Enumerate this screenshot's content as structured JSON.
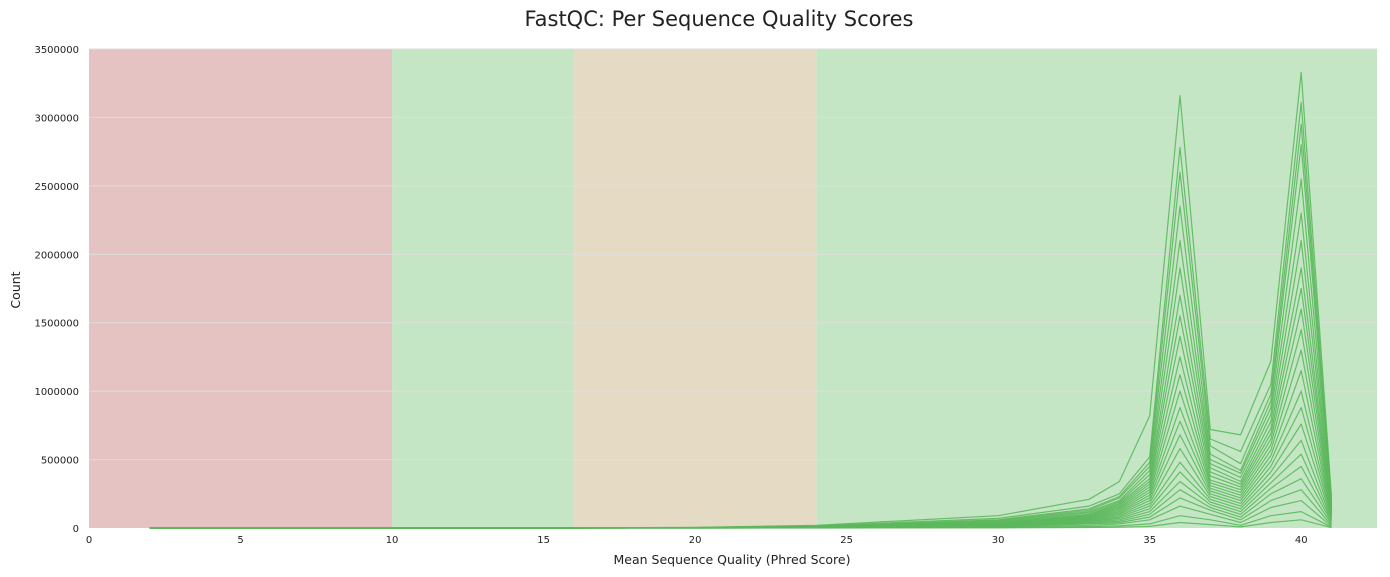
{
  "chart_data": {
    "type": "line",
    "title": "FastQC: Per Sequence Quality Scores",
    "xlabel": "Mean Sequence Quality (Phred Score)",
    "ylabel": "Count",
    "xlim": [
      0,
      42.5
    ],
    "ylim": [
      0,
      3500000
    ],
    "x_ticks": [
      0,
      5,
      10,
      15,
      20,
      25,
      30,
      35,
      40
    ],
    "y_ticks": [
      0,
      500000,
      1000000,
      1500000,
      2000000,
      2500000,
      3000000,
      3500000
    ],
    "grid": "horizontal",
    "bands": [
      {
        "from": 0,
        "to": 10,
        "color": "#e5c3c3"
      },
      {
        "from": 10,
        "to": 16,
        "color": "#c4e6c5"
      },
      {
        "from": 16,
        "to": 24,
        "color": "#e5dbc4"
      },
      {
        "from": 24,
        "to": 42.5,
        "color": "#c4e6c5"
      }
    ],
    "series_color": "#5cb85c",
    "x": [
      2,
      10,
      15,
      20,
      24,
      30,
      33,
      34,
      35,
      36,
      37,
      38,
      39,
      40,
      41
    ],
    "series": [
      {
        "values": [
          0,
          0,
          0,
          5000,
          20000,
          90000,
          210000,
          340000,
          820000,
          3160000,
          720000,
          680000,
          1220000,
          3330000,
          230000
        ]
      },
      {
        "values": [
          0,
          0,
          0,
          3000,
          15000,
          70000,
          160000,
          250000,
          520000,
          2780000,
          650000,
          560000,
          1050000,
          3110000,
          200000
        ]
      },
      {
        "values": [
          0,
          0,
          0,
          3000,
          13000,
          60000,
          140000,
          230000,
          480000,
          2600000,
          600000,
          470000,
          980000,
          2950000,
          180000
        ]
      },
      {
        "values": [
          0,
          0,
          0,
          2500,
          12000,
          55000,
          130000,
          220000,
          450000,
          2350000,
          540000,
          420000,
          930000,
          2800000,
          170000
        ]
      },
      {
        "values": [
          0,
          0,
          0,
          2000,
          11000,
          50000,
          120000,
          200000,
          420000,
          2100000,
          500000,
          400000,
          880000,
          2550000,
          160000
        ]
      },
      {
        "values": [
          0,
          0,
          0,
          2000,
          10000,
          45000,
          110000,
          190000,
          390000,
          1900000,
          470000,
          370000,
          830000,
          2300000,
          150000
        ]
      },
      {
        "values": [
          0,
          0,
          0,
          1800,
          9000,
          40000,
          100000,
          180000,
          360000,
          1700000,
          440000,
          340000,
          780000,
          2100000,
          140000
        ]
      },
      {
        "values": [
          0,
          0,
          0,
          1600,
          8000,
          36000,
          95000,
          170000,
          340000,
          1550000,
          410000,
          320000,
          730000,
          1900000,
          130000
        ]
      },
      {
        "values": [
          0,
          0,
          0,
          1500,
          7500,
          33000,
          90000,
          160000,
          320000,
          1400000,
          380000,
          300000,
          690000,
          1750000,
          125000
        ]
      },
      {
        "values": [
          0,
          0,
          0,
          1400,
          7000,
          30000,
          85000,
          150000,
          300000,
          1250000,
          350000,
          280000,
          650000,
          1600000,
          120000
        ]
      },
      {
        "values": [
          0,
          0,
          0,
          1300,
          6500,
          28000,
          80000,
          140000,
          280000,
          1120000,
          330000,
          260000,
          610000,
          1450000,
          110000
        ]
      },
      {
        "values": [
          0,
          0,
          0,
          1200,
          6000,
          26000,
          75000,
          130000,
          260000,
          1000000,
          310000,
          240000,
          570000,
          1300000,
          100000
        ]
      },
      {
        "values": [
          0,
          0,
          0,
          1100,
          5500,
          24000,
          70000,
          120000,
          240000,
          880000,
          290000,
          220000,
          530000,
          1150000,
          95000
        ]
      },
      {
        "values": [
          0,
          0,
          0,
          1000,
          5000,
          22000,
          65000,
          110000,
          220000,
          780000,
          270000,
          200000,
          490000,
          1000000,
          90000
        ]
      },
      {
        "values": [
          0,
          0,
          0,
          900,
          4500,
          20000,
          60000,
          100000,
          200000,
          680000,
          250000,
          180000,
          450000,
          880000,
          80000
        ]
      },
      {
        "values": [
          0,
          0,
          0,
          800,
          4000,
          18000,
          55000,
          90000,
          180000,
          580000,
          230000,
          160000,
          410000,
          760000,
          70000
        ]
      },
      {
        "values": [
          0,
          0,
          0,
          700,
          3500,
          16000,
          50000,
          80000,
          160000,
          480000,
          210000,
          140000,
          370000,
          640000,
          60000
        ]
      },
      {
        "values": [
          0,
          0,
          0,
          600,
          3000,
          14000,
          45000,
          70000,
          140000,
          410000,
          190000,
          120000,
          330000,
          540000,
          50000
        ]
      },
      {
        "values": [
          0,
          0,
          0,
          500,
          2500,
          12000,
          40000,
          60000,
          120000,
          340000,
          170000,
          100000,
          290000,
          450000,
          40000
        ]
      },
      {
        "values": [
          0,
          0,
          0,
          400,
          2000,
          10000,
          35000,
          50000,
          100000,
          280000,
          150000,
          80000,
          250000,
          360000,
          30000
        ]
      },
      {
        "values": [
          0,
          0,
          0,
          300,
          1500,
          8000,
          30000,
          40000,
          80000,
          220000,
          130000,
          60000,
          200000,
          280000,
          20000
        ]
      },
      {
        "values": [
          0,
          0,
          0,
          200,
          1000,
          6000,
          20000,
          30000,
          60000,
          160000,
          100000,
          40000,
          150000,
          200000,
          12000
        ]
      },
      {
        "values": [
          0,
          0,
          0,
          100,
          500,
          3000,
          10000,
          15000,
          30000,
          90000,
          60000,
          20000,
          90000,
          120000,
          6000
        ]
      },
      {
        "values": [
          0,
          0,
          0,
          50,
          200,
          1000,
          4000,
          6000,
          12000,
          40000,
          25000,
          8000,
          40000,
          60000,
          3000
        ]
      }
    ]
  }
}
